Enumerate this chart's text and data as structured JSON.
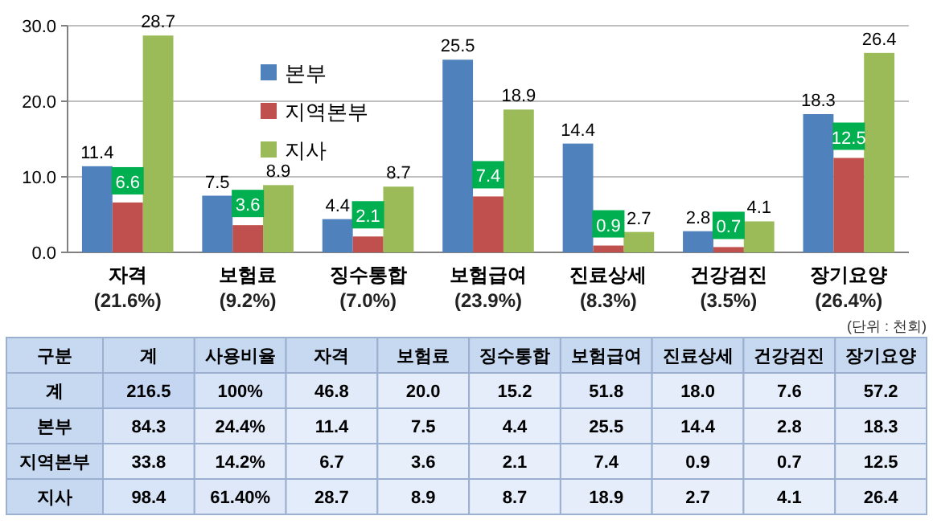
{
  "chart_data": [
    {
      "type": "bar",
      "categories": [
        "자격",
        "보험료",
        "징수통합",
        "보험급여",
        "진료상세",
        "건강검진",
        "장기요양"
      ],
      "series": [
        {
          "name": "본부",
          "color": "#4f81bd",
          "values": [
            11.4,
            7.5,
            4.4,
            25.5,
            14.4,
            2.8,
            18.3
          ]
        },
        {
          "name": "지역본부",
          "color": "#c0504d",
          "values": [
            6.6,
            3.6,
            2.1,
            7.4,
            0.9,
            0.7,
            12.5
          ]
        },
        {
          "name": "지사",
          "color": "#9bbb59",
          "values": [
            28.7,
            8.9,
            8.7,
            18.9,
            2.7,
            4.1,
            26.4
          ]
        }
      ],
      "ylim": [
        0,
        30
      ],
      "yticks": [
        {
          "value": 0,
          "label": "0.0"
        },
        {
          "value": 10,
          "label": "10.0"
        },
        {
          "value": 20,
          "label": "20.0"
        },
        {
          "value": 30,
          "label": "30.0"
        }
      ],
      "grid": "y",
      "legend": "top left",
      "data_labels": true,
      "annotations": [
        "(21.6%)",
        "(9.2%)",
        "(7.0%)",
        "(23.9%)",
        "(8.3%)",
        "(3.5%)",
        "(26.4%)"
      ]
    },
    {
      "type": "heatmap",
      "ylabel": "구분",
      "categories": [
        "계",
        "사용비율",
        "자격",
        "보험료",
        "징수통합",
        "보험급여",
        "진료상세",
        "건강검진",
        "장기요양"
      ],
      "y_categories": [
        "계",
        "본부",
        "지역본부",
        "지사"
      ],
      "cells": [
        [
          216.5,
          100,
          46.8,
          20.0,
          15.2,
          51.8,
          18.0,
          7.6,
          57.2
        ],
        [
          84.3,
          24.4,
          11.4,
          7.5,
          4.4,
          25.5,
          14.4,
          2.8,
          18.3
        ],
        [
          33.8,
          14.2,
          6.7,
          3.6,
          2.1,
          7.4,
          0.9,
          0.7,
          12.5
        ],
        [
          98.4,
          61.4,
          28.7,
          8.9,
          8.7,
          18.9,
          2.7,
          4.1,
          26.4
        ]
      ],
      "cell_labels": [
        [
          "216.5",
          "100%",
          "46.8",
          "20.0",
          "15.2",
          "51.8",
          "18.0",
          "7.6",
          "57.2"
        ],
        [
          "84.3",
          "24.4%",
          "11.4",
          "7.5",
          "4.4",
          "25.5",
          "14.4",
          "2.8",
          "18.3"
        ],
        [
          "33.8",
          "14.2%",
          "6.7",
          "3.6",
          "2.1",
          "7.4",
          "0.9",
          "0.7",
          "12.5"
        ],
        [
          "98.4",
          "61.40%",
          "28.7",
          "8.9",
          "8.7",
          "18.9",
          "2.7",
          "4.1",
          "26.4"
        ]
      ],
      "annotations": [
        "(단위 : 천회)"
      ]
    }
  ]
}
